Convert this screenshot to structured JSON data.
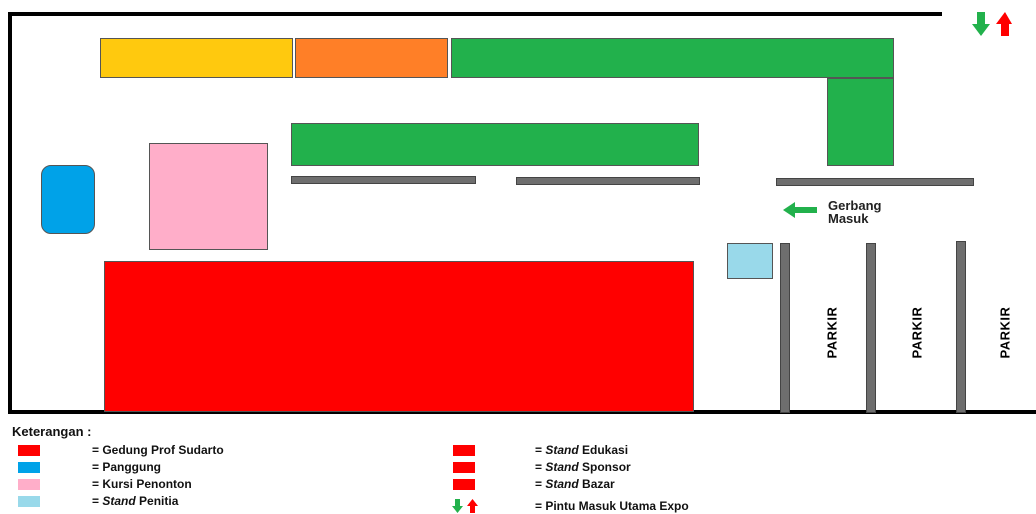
{
  "map": {
    "gate_label_line1": "Gerbang",
    "gate_label_line2": "Masuk",
    "parking_labels": [
      "PARKIR",
      "PARKIR",
      "PARKIR"
    ]
  },
  "legend": {
    "title": "Keterangan :",
    "items": [
      {
        "prefix": "= ",
        "italic": "",
        "text": "Gedung Prof Sudarto",
        "color": "#ff0000"
      },
      {
        "prefix": "= ",
        "italic": "",
        "text": "Panggung",
        "color": "#00a2e8"
      },
      {
        "prefix": "= ",
        "italic": "",
        "text": "Kursi Penonton",
        "color": "#ffaec9"
      },
      {
        "prefix": "= ",
        "italic": "Stand",
        "text": " Penitia",
        "color": "#99d9ea"
      },
      {
        "prefix": "= ",
        "italic": "Stand",
        "text": " Edukasi",
        "color": "#ff0000"
      },
      {
        "prefix": "= ",
        "italic": "Stand",
        "text": " Sponsor",
        "color": "#ff0000"
      },
      {
        "prefix": "= ",
        "italic": "Stand",
        "text": " Bazar",
        "color": "#ff0000"
      },
      {
        "prefix": "= ",
        "italic": "",
        "text": "Pintu Masuk Utama Expo",
        "color": ""
      }
    ]
  },
  "colors": {
    "building": "#ff0000",
    "stage": "#00a2e8",
    "seating": "#ffaec9",
    "committee": "#99d9ea",
    "yellow_stand": "#ffc90e",
    "orange_stand": "#ff7f27",
    "green_stand": "#22b14c",
    "arrow_in": "#22b14c",
    "arrow_out": "#ff0000"
  }
}
